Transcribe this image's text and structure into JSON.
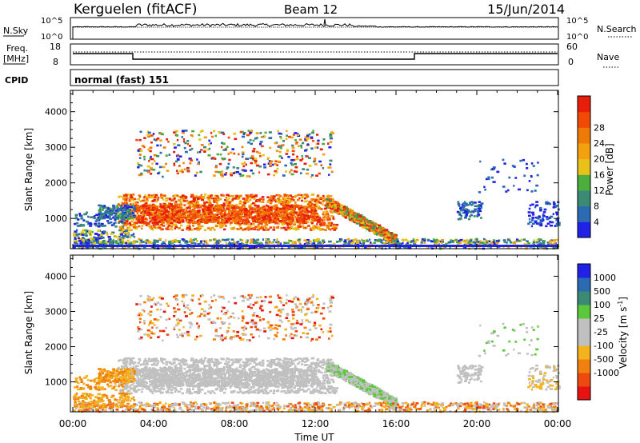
{
  "header": {
    "station": "Kerguelen (fitACF)",
    "beam": "Beam 12",
    "date": "15/Jun/2014"
  },
  "summary": {
    "nsky_label": "N.Sky",
    "nsky_ticks": [
      "10^5",
      "10^0"
    ],
    "nsearch_label": "N.Search",
    "nsearch_ticks": [
      "10^5",
      "10^0"
    ],
    "freq_label": "Freq.",
    "freq_unit": "[MHz]",
    "freq_ticks": [
      "18",
      "8"
    ],
    "nave_label": "Nave",
    "nave_ticks": [
      "60",
      "0"
    ],
    "cpid_label": "CPID",
    "cpid_value": "normal (fast) 151"
  },
  "colors": {
    "power": [
      "#2121e8",
      "#2a6bb3",
      "#3b8a73",
      "#4cae3c",
      "#e8c21a",
      "#f3a10f",
      "#f07a08",
      "#f14a06",
      "#e81e0b"
    ],
    "velocity": [
      "#2121e8",
      "#2a6bb3",
      "#3b8a73",
      "#5ac83a",
      "#c0c0c0",
      "#c0c0c0",
      "#f4b21e",
      "#f08010",
      "#ee4a10",
      "#e81212"
    ]
  },
  "chart_data": [
    {
      "type": "heatmap",
      "name": "power",
      "ylabel": "Slant Range [km]",
      "y_ticks": [
        "1000",
        "2000",
        "3000",
        "4000"
      ],
      "ylim": [
        150,
        4600
      ],
      "x_ticks": [
        "00:00",
        "04:00",
        "08:00",
        "12:00",
        "16:00",
        "20:00",
        "00:00"
      ],
      "xlim": [
        0,
        24
      ],
      "colorbar": {
        "label": "Power [dB]",
        "ticks": [
          "4",
          "8",
          "12",
          "16",
          "20",
          "24",
          "28"
        ],
        "range": [
          0,
          32
        ]
      }
    },
    {
      "type": "heatmap",
      "name": "velocity",
      "ylabel": "Slant Range [km]",
      "y_ticks": [
        "1000",
        "2000",
        "3000",
        "4000"
      ],
      "ylim": [
        150,
        4600
      ],
      "x_ticks": [
        "00:00",
        "04:00",
        "08:00",
        "12:00",
        "16:00",
        "20:00",
        "00:00"
      ],
      "xlim": [
        0,
        24
      ],
      "xlabel": "Time UT",
      "colorbar": {
        "label": "Velocity [m s",
        "label_sup": "-1",
        "label_end": "]",
        "ticks": [
          "1000",
          "500",
          "100",
          "25",
          "-25",
          "-100",
          "-500",
          "-1000"
        ]
      }
    }
  ]
}
